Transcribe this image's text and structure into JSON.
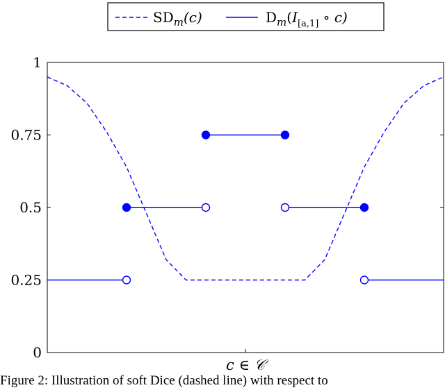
{
  "caption": "Figure 2: Illustration of soft Dice (dashed line) with respect to",
  "chart_data": {
    "type": "line",
    "xlabel": "c ∈ 𝒞",
    "ylabel": "",
    "ylim": [
      0,
      1
    ],
    "yticks": [
      {
        "value": 0,
        "label": "0"
      },
      {
        "value": 0.25,
        "label": "0.25"
      },
      {
        "value": 0.5,
        "label": "0.5"
      },
      {
        "value": 0.75,
        "label": "0.75"
      },
      {
        "value": 1,
        "label": "1"
      }
    ],
    "xlim": [
      0,
      1
    ],
    "grid": false,
    "legend_placement": "top-center",
    "color": "#0000ff",
    "series": [
      {
        "name": "SD_m(c)",
        "legend_main": "SD",
        "legend_sub": "m",
        "legend_rest": "(c)",
        "style": "dashed",
        "x": [
          0,
          0.05,
          0.1,
          0.15,
          0.2,
          0.25,
          0.3,
          0.35,
          0.4,
          0.45,
          0.5,
          0.55,
          0.6,
          0.65,
          0.7,
          0.75,
          0.8,
          0.85,
          0.9,
          0.95,
          1
        ],
        "y": [
          0.95,
          0.92,
          0.86,
          0.76,
          0.64,
          0.48,
          0.32,
          0.25,
          0.25,
          0.25,
          0.25,
          0.25,
          0.25,
          0.25,
          0.32,
          0.48,
          0.64,
          0.76,
          0.86,
          0.92,
          0.95
        ]
      },
      {
        "name": "D_m(I_[a,1] ∘ c)",
        "legend_main": "D",
        "legend_sub": "m",
        "legend_paren_open": "(",
        "legend_I": "I",
        "legend_I_sub": "[a,1]",
        "legend_rest": " ∘ c)",
        "style": "solid-step",
        "segments": [
          {
            "x0": 0,
            "x1": 0.2,
            "y": 0.25,
            "left_marker": "none",
            "right_marker": "open"
          },
          {
            "x0": 0.2,
            "x1": 0.4,
            "y": 0.5,
            "left_marker": "filled",
            "right_marker": "open"
          },
          {
            "x0": 0.4,
            "x1": 0.6,
            "y": 0.75,
            "left_marker": "filled",
            "right_marker": "filled"
          },
          {
            "x0": 0.6,
            "x1": 0.8,
            "y": 0.5,
            "left_marker": "open",
            "right_marker": "filled"
          },
          {
            "x0": 0.8,
            "x1": 1,
            "y": 0.25,
            "left_marker": "open",
            "right_marker": "none"
          }
        ]
      }
    ]
  }
}
